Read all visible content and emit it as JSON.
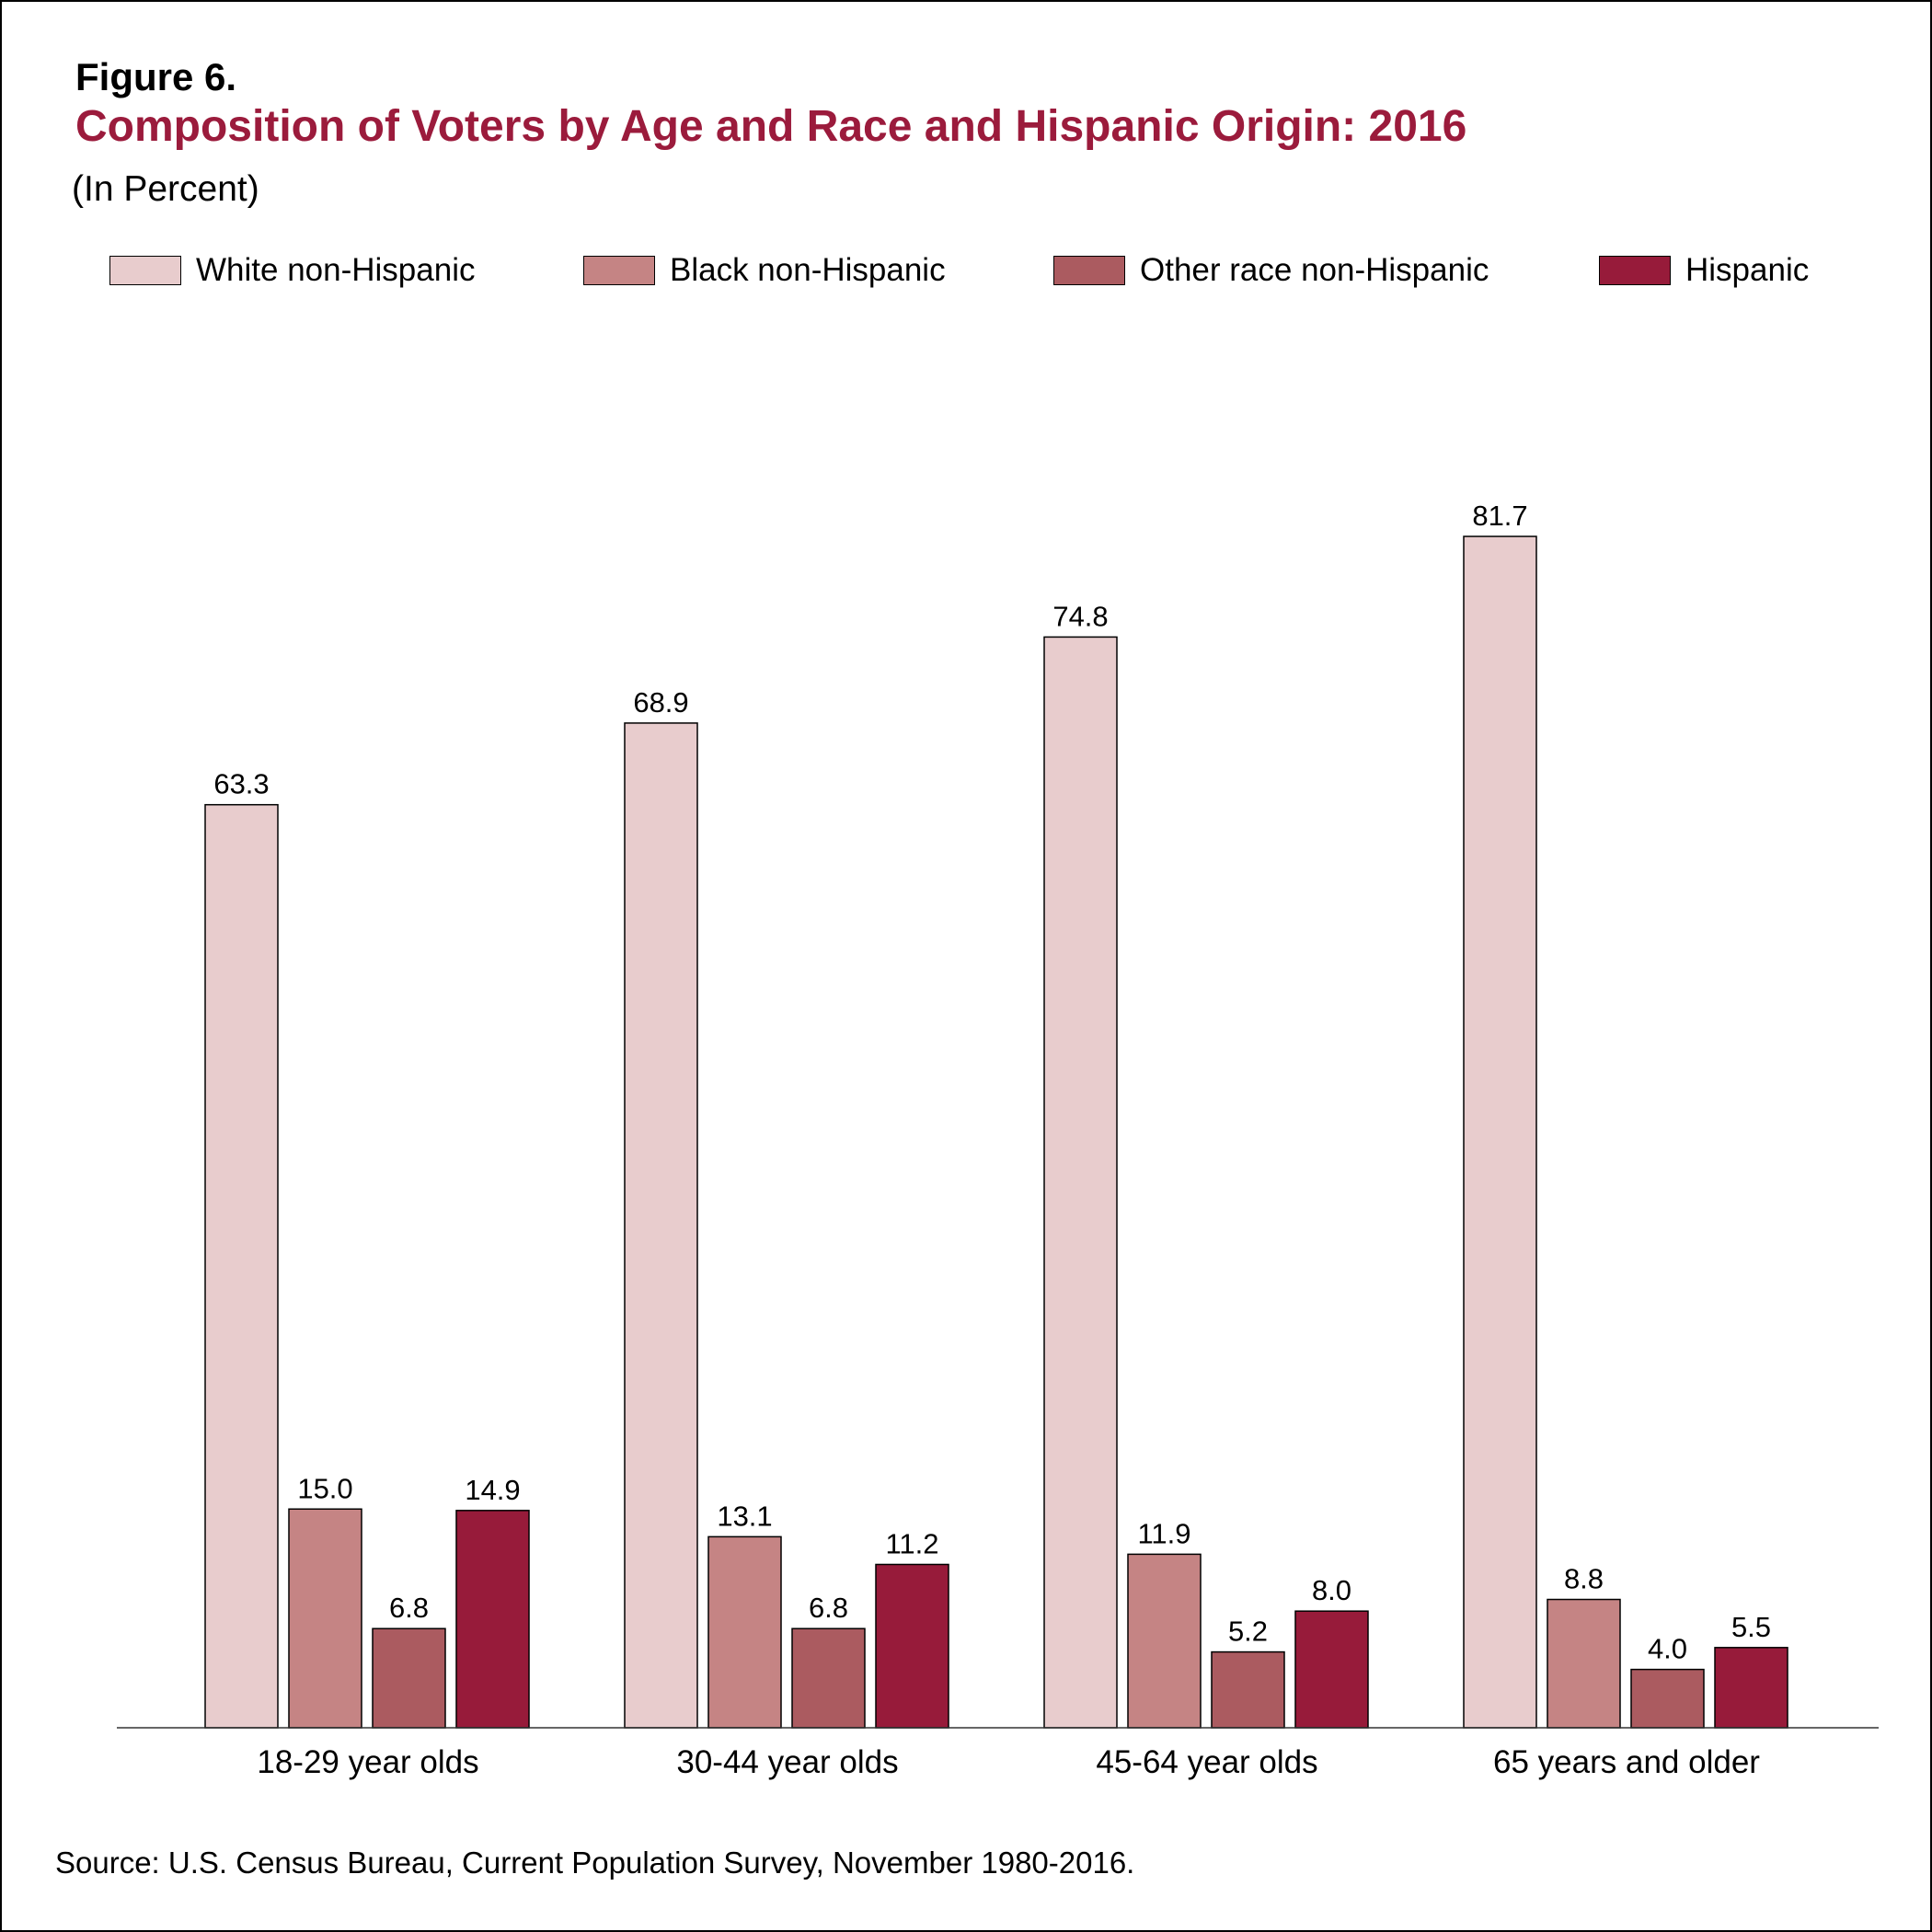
{
  "figure": {
    "number": "Figure 6.",
    "title": "Composition of Voters by Age and Race and Hispanic Origin: 2016",
    "subtitle": "(In Percent)",
    "source": "Source: U.S. Census Bureau, Current Population Survey, November 1980-2016."
  },
  "legend": [
    {
      "label": "White non-Hispanic",
      "color": "#e8cccd"
    },
    {
      "label": "Black non-Hispanic",
      "color": "#c58484"
    },
    {
      "label": "Other race non-Hispanic",
      "color": "#ab5b60"
    },
    {
      "label": "Hispanic",
      "color": "#971b3a"
    }
  ],
  "chart_data": {
    "type": "bar",
    "title": "Composition of Voters by Age and Race and Hispanic Origin: 2016",
    "subtitle": "(In Percent)",
    "xlabel": "",
    "ylabel": "",
    "ylim": [
      0,
      100
    ],
    "grid": false,
    "legend_position": "top",
    "categories": [
      "18-29 year olds",
      "30-44 year olds",
      "45-64 year olds",
      "65 years and older"
    ],
    "series": [
      {
        "name": "White non-Hispanic",
        "color": "#e8cccd",
        "values": [
          63.3,
          68.9,
          74.8,
          81.7
        ],
        "labels": [
          "63.3",
          "68.9",
          "74.8",
          "81.7"
        ]
      },
      {
        "name": "Black non-Hispanic",
        "color": "#c58484",
        "values": [
          15.0,
          13.1,
          11.9,
          8.8
        ],
        "labels": [
          "15.0",
          "13.1",
          "11.9",
          "8.8"
        ]
      },
      {
        "name": "Other race non-Hispanic",
        "color": "#ab5b60",
        "values": [
          6.8,
          6.8,
          5.2,
          4.0
        ],
        "labels": [
          "6.8",
          "6.8",
          "5.2",
          "4.0"
        ]
      },
      {
        "name": "Hispanic",
        "color": "#971b3a",
        "values": [
          14.9,
          11.2,
          8.0,
          5.5
        ],
        "labels": [
          "14.9",
          "11.2",
          "8.0",
          "5.5"
        ]
      }
    ]
  }
}
